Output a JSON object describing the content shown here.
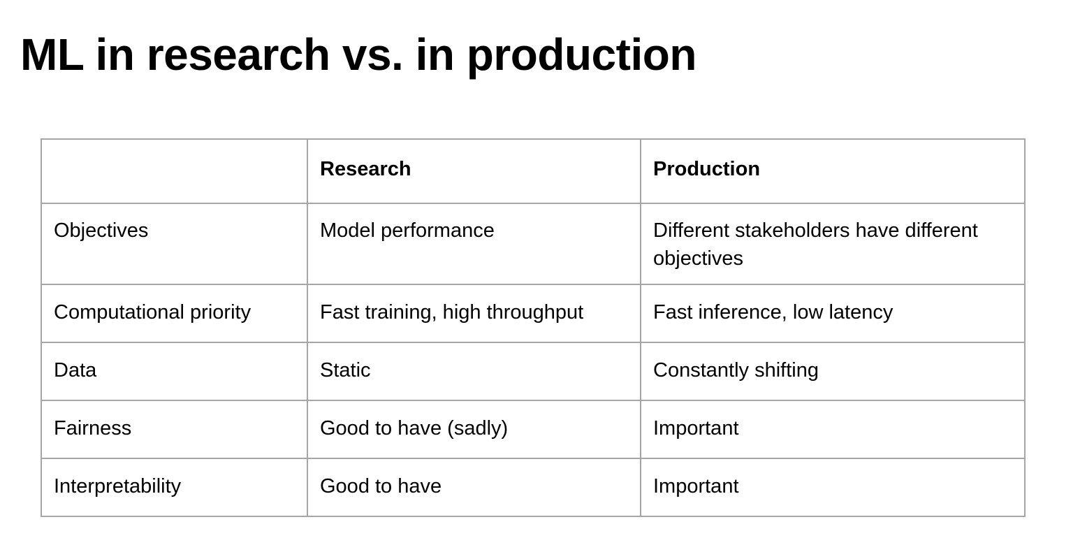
{
  "title": "ML in research vs. in production",
  "table": {
    "headers": [
      "",
      "Research",
      "Production"
    ],
    "rows": [
      [
        "Objectives",
        "Model performance",
        "Different stakeholders have different objectives"
      ],
      [
        "Computational priority",
        "Fast training, high throughput",
        "Fast inference, low latency"
      ],
      [
        "Data",
        "Static",
        "Constantly shifting"
      ],
      [
        "Fairness",
        "Good to have (sadly)",
        "Important"
      ],
      [
        "Interpretability",
        "Good to have",
        "Important"
      ]
    ]
  }
}
